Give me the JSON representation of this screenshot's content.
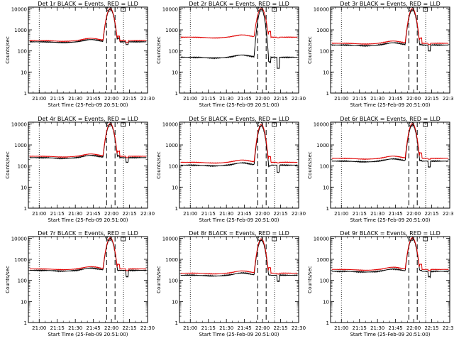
{
  "chart_data": {
    "type": "line",
    "xlabel": "Start Time (25-Feb-09 20:51:00)",
    "ylabel": "Counts/sec",
    "y_scale": "log",
    "ylim": [
      1,
      12000
    ],
    "y_ticks": [
      1,
      10,
      100,
      1000,
      10000
    ],
    "y_tick_labels": [
      "1",
      "10",
      "100",
      "1000",
      "10000"
    ],
    "x_ticks": [
      "21:00",
      "21:15",
      "21:30",
      "21:45",
      "22:00",
      "22:15",
      "22:30"
    ],
    "xlim": [
      "20:51",
      "22:30"
    ],
    "grid": false,
    "vertical_marker_times": {
      "dotted": [
        "21:00",
        "22:10"
      ],
      "dashed": [
        "21:56",
        "22:03"
      ]
    },
    "series_colors": {
      "events": "#000000",
      "lld": "#e00000"
    },
    "panels": [
      {
        "title": "Det 1r BLACK = Events, RED = LLD",
        "events": {
          "base": 270,
          "flare_peak": 9500,
          "dip": 200
        },
        "lld": {
          "base": 310,
          "flare_peak": 10500,
          "dip": 250
        }
      },
      {
        "title": "Det 2r BLACK = Events, RED = LLD",
        "events": {
          "base": 50,
          "flare_peak": 9500,
          "dip": 15
        },
        "lld": {
          "base": 450,
          "flare_peak": 11000,
          "dip": 420
        }
      },
      {
        "title": "Det 3r BLACK = Events, RED = LLD",
        "events": {
          "base": 190,
          "flare_peak": 9000,
          "dip": 100
        },
        "lld": {
          "base": 230,
          "flare_peak": 10500,
          "dip": 200
        }
      },
      {
        "title": "Det 4r BLACK = Events, RED = LLD",
        "events": {
          "base": 250,
          "flare_peak": 9500,
          "dip": 150
        },
        "lld": {
          "base": 290,
          "flare_peak": 10500,
          "dip": 250
        }
      },
      {
        "title": "Det 5r BLACK = Events, RED = LLD",
        "events": {
          "base": 110,
          "flare_peak": 8000,
          "dip": 50
        },
        "lld": {
          "base": 150,
          "flare_peak": 9500,
          "dip": 140
        }
      },
      {
        "title": "Det 6r BLACK = Events, RED = LLD",
        "events": {
          "base": 170,
          "flare_peak": 9000,
          "dip": 90
        },
        "lld": {
          "base": 230,
          "flare_peak": 10500,
          "dip": 210
        }
      },
      {
        "title": "Det 7r BLACK = Events, RED = LLD",
        "events": {
          "base": 300,
          "flare_peak": 9500,
          "dip": 150
        },
        "lld": {
          "base": 350,
          "flare_peak": 10500,
          "dip": 290
        }
      },
      {
        "title": "Det 8r BLACK = Events, RED = LLD",
        "events": {
          "base": 175,
          "flare_peak": 8000,
          "dip": 90
        },
        "lld": {
          "base": 220,
          "flare_peak": 9500,
          "dip": 200
        }
      },
      {
        "title": "Det 9r BLACK = Events, RED = LLD",
        "events": {
          "base": 270,
          "flare_peak": 9500,
          "dip": 150
        },
        "lld": {
          "base": 330,
          "flare_peak": 10500,
          "dip": 290
        }
      }
    ]
  }
}
